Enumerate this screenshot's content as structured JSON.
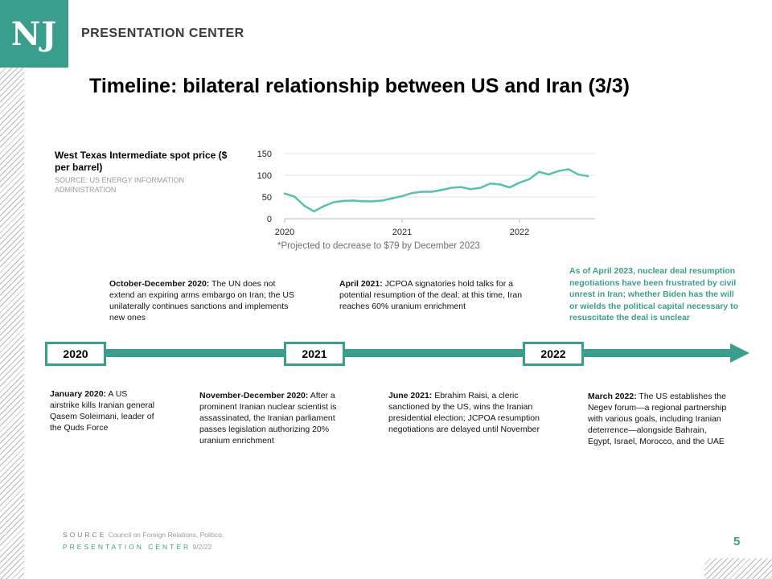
{
  "brand": {
    "logo": "NJ",
    "name": "PRESENTATION CENTER"
  },
  "title": "Timeline: bilateral relationship between US and Iran (3/3)",
  "chart": {
    "title": "West Texas Intermediate spot price ($ per barrel)",
    "source": "SOURCE: US ENERGY INFORMATION ADMINISTRATION",
    "note": "*Projected to decrease to $79 by December 2023"
  },
  "chart_data": {
    "type": "line",
    "title": "West Texas Intermediate spot price ($ per barrel)",
    "xlabel": "",
    "ylabel": "",
    "ylim": [
      0,
      150
    ],
    "yticks": [
      "0",
      "50",
      "100",
      "150"
    ],
    "xticks": [
      "2020",
      "2021",
      "2022"
    ],
    "grid": true,
    "color": "#55c2ad",
    "x": [
      "2020-01",
      "2020-02",
      "2020-03",
      "2020-04",
      "2020-05",
      "2020-06",
      "2020-07",
      "2020-08",
      "2020-09",
      "2020-10",
      "2020-11",
      "2020-12",
      "2021-01",
      "2021-02",
      "2021-03",
      "2021-04",
      "2021-05",
      "2021-06",
      "2021-07",
      "2021-08",
      "2021-09",
      "2021-10",
      "2021-11",
      "2021-12",
      "2022-01",
      "2022-02",
      "2022-03",
      "2022-04",
      "2022-05",
      "2022-06",
      "2022-07",
      "2022-08"
    ],
    "values": [
      58,
      51,
      30,
      17,
      29,
      38,
      41,
      42,
      40,
      40,
      42,
      47,
      52,
      59,
      62,
      62,
      66,
      71,
      73,
      68,
      71,
      81,
      79,
      72,
      83,
      91,
      108,
      102,
      110,
      114,
      102,
      98
    ]
  },
  "timeline": {
    "years": [
      "2020",
      "2021",
      "2022"
    ]
  },
  "events": {
    "jan2020": {
      "head": "January 2020:",
      "body": " A US airstrike kills Iranian general Qasem Soleimani, leader of the Quds Force"
    },
    "octdec2020": {
      "head": "October-December 2020:",
      "body": " The UN does not extend an expiring arms embargo on Iran; the US unilaterally continues sanctions and implements new ones"
    },
    "novdec2020": {
      "head": "November-December 2020:",
      "body": " After a prominent Iranian nuclear scientist is assassinated, the Iranian parliament passes legislation authorizing 20% uranium enrichment"
    },
    "apr2021": {
      "head": "April 2021:",
      "body": " JCPOA signatories hold talks for a potential resumption of the deal; at this time, Iran reaches 60% uranium enrichment"
    },
    "jun2021": {
      "head": "June 2021:",
      "body": " Ebrahim Raisi, a cleric sanctioned by the US, wins the Iranian presidential election; JCPOA resumption negotiations are delayed until November"
    },
    "mar2022": {
      "head": "March 2022:",
      "body": " The US establishes the Negev forum—a regional partnership with various goals, including Iranian deterrence—alongside Bahrain, Egypt, Israel, Morocco, and the UAE"
    }
  },
  "callout": "As of April 2023, nuclear deal resumption negotiations have been frustrated by civil unrest in Iran; whether Biden has the will or wields the political capital necessary to resuscitate the deal is unclear",
  "footer": {
    "source_label": "SOURCE",
    "source_value": "Council on Foreign Relations, Politico.",
    "pc_label": "PRESENTATION CENTER",
    "date": "9/2/22"
  },
  "page_number": "5"
}
